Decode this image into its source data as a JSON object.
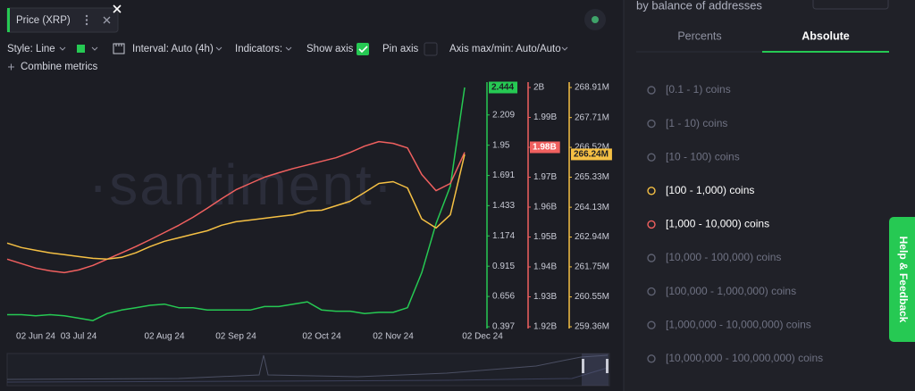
{
  "header": {
    "metric": "Price (XRP)"
  },
  "toolbar": {
    "style": "Style: Line",
    "interval": "Interval: Auto (4h)",
    "indicators": "Indicators:",
    "show_axis": "Show axis",
    "pin_axis": "Pin axis",
    "axis_range": "Axis max/min: Auto/Auto",
    "combine": "Combine metrics"
  },
  "watermark": "·santiment·",
  "chart_data": {
    "type": "line",
    "x": [
      null,
      null,
      "02 Jun 24",
      null,
      null,
      "03 Jul 24",
      null,
      null,
      null,
      null,
      null,
      "02 Aug 24",
      null,
      null,
      null,
      null,
      "02 Sep 24",
      null,
      null,
      null,
      null,
      null,
      "02 Oct 24",
      null,
      null,
      null,
      null,
      "02 Nov 24",
      null,
      null,
      null,
      null,
      "02 Dec 24"
    ],
    "ylim": [
      0.397,
      2.444
    ],
    "yticks": [
      2.209,
      1.95,
      1.691,
      1.433,
      1.174,
      0.915,
      0.656,
      0.397
    ],
    "y2lim": [
      1920000000,
      2000000000
    ],
    "y2ticks": [
      {
        "value": 2000000000,
        "label": "2B"
      },
      {
        "value": 1990000000,
        "label": "1.99B"
      },
      {
        "value": 1980000000,
        "label": "1.98B"
      },
      {
        "value": 1970000000,
        "label": "1.97B"
      },
      {
        "value": 1960000000,
        "label": "1.96B"
      },
      {
        "value": 1950000000,
        "label": "1.95B"
      },
      {
        "value": 1940000000,
        "label": "1.94B"
      },
      {
        "value": 1930000000,
        "label": "1.93B"
      },
      {
        "value": 1920000000,
        "label": "1.92B"
      }
    ],
    "y3lim": [
      259360000,
      268910000
    ],
    "y3ticks": [
      {
        "value": 268910000,
        "label": "268.91M"
      },
      {
        "value": 267710000,
        "label": "267.71M"
      },
      {
        "value": 266520000,
        "label": "266.52M"
      },
      {
        "value": 265330000,
        "label": "265.33M"
      },
      {
        "value": 264130000,
        "label": "264.13M"
      },
      {
        "value": 262940000,
        "label": "262.94M"
      },
      {
        "value": 261750000,
        "label": "261.75M"
      },
      {
        "value": 260550000,
        "label": "260.55M"
      },
      {
        "value": 259360000,
        "label": "259.36M"
      }
    ],
    "grid": false,
    "series": [
      {
        "color": "#26c953",
        "axis": "y",
        "current": 2.444,
        "values": [
          0.5,
          0.5,
          0.49,
          0.5,
          0.49,
          0.47,
          0.45,
          0.51,
          0.54,
          0.56,
          0.58,
          0.59,
          0.56,
          0.56,
          0.54,
          0.54,
          0.54,
          0.54,
          0.57,
          0.57,
          0.59,
          0.61,
          0.54,
          0.53,
          0.53,
          0.51,
          0.52,
          0.52,
          0.56,
          0.86,
          1.28,
          1.6,
          2.444
        ]
      },
      {
        "color": "#f0605f",
        "axis": "y2",
        "current": {
          "value": 1980000000,
          "label": "1.98B"
        },
        "values": [
          1942600000,
          1941100000,
          1939600000,
          1938700000,
          1938100000,
          1939000000,
          1940500000,
          1942600000,
          1944700000,
          1946800000,
          1949100000,
          1951500000,
          1953900000,
          1956600000,
          1959600000,
          1962800000,
          1965800000,
          1967900000,
          1970000000,
          1971500000,
          1972900000,
          1974100000,
          1975300000,
          1976500000,
          1978300000,
          1980400000,
          1981900000,
          1981300000,
          1979800000,
          1970900000,
          1965500000,
          1967900000,
          1978300000
        ]
      },
      {
        "color": "#f5c044",
        "axis": "y3",
        "current": {
          "value": 266240000,
          "label": "266.24M"
        },
        "values": [
          262700000,
          262520000,
          262410000,
          262310000,
          262240000,
          262160000,
          262090000,
          262060000,
          262130000,
          262310000,
          262560000,
          262770000,
          262910000,
          263050000,
          263190000,
          263410000,
          263550000,
          263620000,
          263690000,
          263760000,
          263830000,
          263980000,
          264010000,
          264190000,
          264370000,
          264720000,
          265080000,
          265150000,
          264900000,
          263660000,
          263300000,
          263830000,
          266240000
        ]
      }
    ]
  },
  "panel": {
    "subtitle": "by balance of addresses",
    "tabs": [
      "Percents",
      "Absolute"
    ],
    "items": [
      {
        "label": "[0.1 - 1) coins"
      },
      {
        "label": "[1 - 10) coins"
      },
      {
        "label": "[10 - 100) coins"
      },
      {
        "label": "[100 - 1,000) coins",
        "color": "#f5c044"
      },
      {
        "label": "[1,000 - 10,000) coins",
        "color": "#f0605f"
      },
      {
        "label": "[10,000 - 100,000) coins"
      },
      {
        "label": "[100,000 - 1,000,000) coins"
      },
      {
        "label": "[1,000,000 - 10,000,000) coins"
      },
      {
        "label": "[10,000,000 - 100,000,000) coins"
      }
    ]
  },
  "feedback": "Help & Feedback"
}
